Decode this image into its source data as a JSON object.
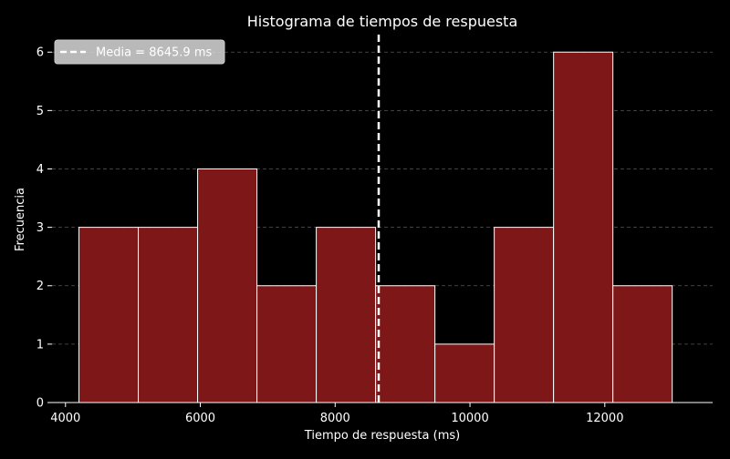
{
  "chart_data": {
    "type": "histogram",
    "title": "Histograma de tiempos de respuesta",
    "xlabel": "Tiempo de respuesta (ms)",
    "ylabel": "Frecuencia",
    "bin_edges": [
      4200,
      5080,
      5960,
      6840,
      7720,
      8600,
      9480,
      10360,
      11240,
      12120,
      13000
    ],
    "counts": [
      3,
      3,
      4,
      2,
      3,
      2,
      1,
      3,
      6,
      2
    ],
    "xlim": [
      3800,
      13600
    ],
    "ylim": [
      0,
      6.3
    ],
    "xticks": [
      4000,
      6000,
      8000,
      10000,
      12000
    ],
    "yticks": [
      0,
      1,
      2,
      3,
      4,
      5,
      6
    ],
    "grid": "horizontal dashed",
    "mean_line": {
      "value": 8645.9,
      "label": "Media = 8645.9 ms"
    },
    "legend_position": "top-left",
    "colors": {
      "bar": "#7d1718",
      "bar_edge": "#ffffff",
      "background": "#000000",
      "mean_line": "#ffffff",
      "grid": "#555555"
    }
  }
}
